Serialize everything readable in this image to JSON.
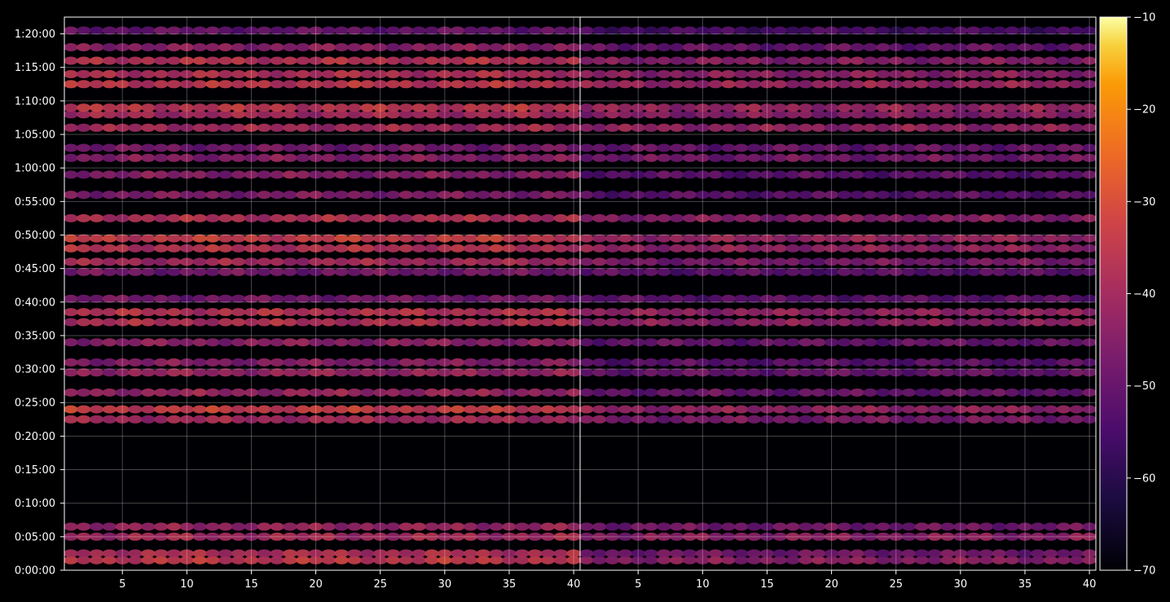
{
  "chart_data": {
    "type": "heatmap",
    "colormap": "inferno",
    "background": "#000000",
    "grid": true,
    "colorbar": {
      "position": "right",
      "range": [
        -70,
        -10
      ],
      "ticks": [
        -10,
        -20,
        -30,
        -40,
        -50,
        -60,
        -70
      ],
      "tick_labels": [
        "−10",
        "−20",
        "−30",
        "−40",
        "−50",
        "−60",
        "−70"
      ]
    },
    "y_axis": {
      "range": [
        0,
        4950
      ],
      "ticks": [
        0,
        300,
        600,
        900,
        1200,
        1500,
        1800,
        2100,
        2400,
        2700,
        3000,
        3300,
        3600,
        3900,
        4200,
        4500,
        4800
      ],
      "tick_labels": [
        "0:00:00",
        "0:05:00",
        "0:10:00",
        "0:15:00",
        "0:20:00",
        "0:25:00",
        "0:30:00",
        "0:35:00",
        "0:40:00",
        "0:45:00",
        "0:50:00",
        "0:55:00",
        "1:00:00",
        "1:05:00",
        "1:10:00",
        "1:15:00",
        "1:20:00"
      ]
    },
    "panels": [
      {
        "name": "left",
        "x_range": [
          1,
          40
        ],
        "x_ticks": [
          5,
          10,
          15,
          20,
          25,
          30,
          35,
          40
        ],
        "x_tick_labels": [
          "5",
          "10",
          "15",
          "20",
          "25",
          "30",
          "35",
          "40"
        ],
        "rows": [
          {
            "t": 90,
            "v": -35
          },
          {
            "t": 150,
            "v": -38
          },
          {
            "t": 300,
            "v": -40
          },
          {
            "t": 390,
            "v": -42
          },
          {
            "t": 1350,
            "v": -40
          },
          {
            "t": 1440,
            "v": -34
          },
          {
            "t": 1590,
            "v": -42
          },
          {
            "t": 1770,
            "v": -42
          },
          {
            "t": 1860,
            "v": -45
          },
          {
            "t": 2040,
            "v": -44
          },
          {
            "t": 2220,
            "v": -38
          },
          {
            "t": 2310,
            "v": -37
          },
          {
            "t": 2430,
            "v": -48
          },
          {
            "t": 2670,
            "v": -48
          },
          {
            "t": 2760,
            "v": -40
          },
          {
            "t": 2880,
            "v": -37
          },
          {
            "t": 2970,
            "v": -34
          },
          {
            "t": 3150,
            "v": -38
          },
          {
            "t": 3360,
            "v": -46
          },
          {
            "t": 3540,
            "v": -45
          },
          {
            "t": 3690,
            "v": -45
          },
          {
            "t": 3780,
            "v": -48
          },
          {
            "t": 3960,
            "v": -40
          },
          {
            "t": 4080,
            "v": -40
          },
          {
            "t": 4140,
            "v": -36
          },
          {
            "t": 4350,
            "v": -36
          },
          {
            "t": 4440,
            "v": -38
          },
          {
            "t": 4560,
            "v": -37
          },
          {
            "t": 4680,
            "v": -44
          },
          {
            "t": 4830,
            "v": -50
          }
        ]
      },
      {
        "name": "right",
        "x_range": [
          1,
          40
        ],
        "x_ticks": [
          5,
          10,
          15,
          20,
          25,
          30,
          35,
          40
        ],
        "x_tick_labels": [
          "5",
          "10",
          "15",
          "20",
          "25",
          "30",
          "35",
          "40"
        ],
        "rows": [
          {
            "t": 90,
            "v": -44
          },
          {
            "t": 150,
            "v": -48
          },
          {
            "t": 300,
            "v": -44
          },
          {
            "t": 390,
            "v": -48
          },
          {
            "t": 1350,
            "v": -47
          },
          {
            "t": 1440,
            "v": -43
          },
          {
            "t": 1590,
            "v": -50
          },
          {
            "t": 1770,
            "v": -50
          },
          {
            "t": 1860,
            "v": -52
          },
          {
            "t": 2040,
            "v": -50
          },
          {
            "t": 2220,
            "v": -44
          },
          {
            "t": 2310,
            "v": -43
          },
          {
            "t": 2430,
            "v": -52
          },
          {
            "t": 2670,
            "v": -52
          },
          {
            "t": 2760,
            "v": -47
          },
          {
            "t": 2880,
            "v": -43
          },
          {
            "t": 2970,
            "v": -42
          },
          {
            "t": 3150,
            "v": -45
          },
          {
            "t": 3360,
            "v": -52
          },
          {
            "t": 3540,
            "v": -52
          },
          {
            "t": 3690,
            "v": -48
          },
          {
            "t": 3780,
            "v": -50
          },
          {
            "t": 3960,
            "v": -43
          },
          {
            "t": 4080,
            "v": -45
          },
          {
            "t": 4140,
            "v": -42
          },
          {
            "t": 4350,
            "v": -42
          },
          {
            "t": 4440,
            "v": -44
          },
          {
            "t": 4560,
            "v": -45
          },
          {
            "t": 4680,
            "v": -50
          },
          {
            "t": 4830,
            "v": -55
          }
        ]
      }
    ]
  }
}
